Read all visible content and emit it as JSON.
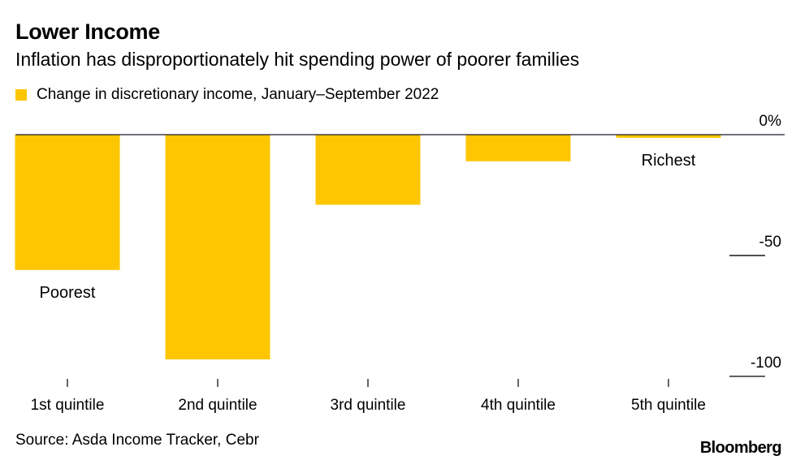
{
  "header": {
    "title": "Lower Income",
    "subtitle": "Inflation has disproportionately hit spending power of poorer families"
  },
  "footer": {
    "source": "Source: Asda Income Tracker, Cebr",
    "brand": "Bloomberg"
  },
  "colors": {
    "bar": "#fec600",
    "axis": "#1a1a2e",
    "text": "#000000"
  },
  "chart_data": {
    "type": "bar",
    "categories": [
      "1st quintile",
      "2nd quintile",
      "3rd quintile",
      "4th quintile",
      "5th quintile"
    ],
    "series": [
      {
        "name": "Change in discretionary income, January–September 2022",
        "values": [
          -56,
          -93,
          -29,
          -11,
          -1.3
        ]
      }
    ],
    "ylim": [
      -102,
      0
    ],
    "y_ticks": [
      0,
      -50,
      -100
    ],
    "y_tick_labels": [
      "0%",
      "-50",
      "-100"
    ],
    "annotations": [
      {
        "category": "1st quintile",
        "text": "Poorest"
      },
      {
        "category": "5th quintile",
        "text": "Richest"
      }
    ],
    "legend_position": "top-left",
    "y_axis_position": "right",
    "grid": false
  }
}
